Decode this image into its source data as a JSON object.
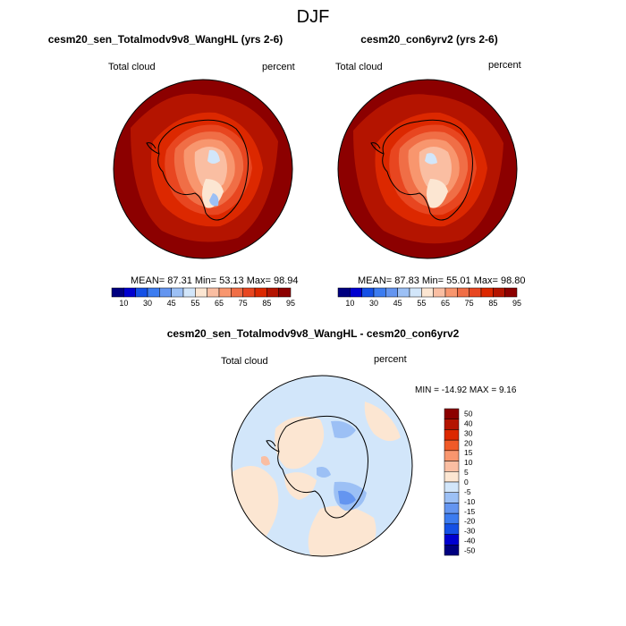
{
  "figure_title": "DJF",
  "chart_data": [
    {
      "type": "heatmap",
      "title": "cesm20_sen_Totalmodv9v8_WangHL (yrs 2-6)",
      "left_label": "Total cloud",
      "right_label": "percent",
      "stats": {
        "mean_label": "MEAN=",
        "mean": "87.31",
        "min_label": "Min=",
        "min": "53.13",
        "max_label": "Max=",
        "max": "98.94"
      },
      "colorbar": {
        "orientation": "horizontal",
        "colors": [
          "#000080",
          "#0000d0",
          "#1450e6",
          "#3c7cf0",
          "#6495f0",
          "#9cc0f5",
          "#d2e6fa",
          "#fce6d2",
          "#fabea2",
          "#f8966e",
          "#f06e46",
          "#e84620",
          "#dc2800",
          "#b41400",
          "#8c0000"
        ],
        "ticks": [
          "10",
          "30",
          "45",
          "55",
          "65",
          "75",
          "85",
          "95"
        ]
      }
    },
    {
      "type": "heatmap",
      "title": "cesm20_con6yrv2 (yrs 2-6)",
      "left_label": "Total cloud",
      "right_label": "percent",
      "stats": {
        "mean_label": "MEAN=",
        "mean": "87.83",
        "min_label": "Min=",
        "min": "55.01",
        "max_label": "Max=",
        "max": "98.80"
      },
      "colorbar": {
        "orientation": "horizontal",
        "colors": [
          "#000080",
          "#0000d0",
          "#1450e6",
          "#3c7cf0",
          "#6495f0",
          "#9cc0f5",
          "#d2e6fa",
          "#fce6d2",
          "#fabea2",
          "#f8966e",
          "#f06e46",
          "#e84620",
          "#dc2800",
          "#b41400",
          "#8c0000"
        ],
        "ticks": [
          "10",
          "30",
          "45",
          "55",
          "65",
          "75",
          "85",
          "95"
        ]
      }
    },
    {
      "type": "heatmap",
      "title": "cesm20_sen_Totalmodv9v8_WangHL - cesm20_con6yrv2",
      "left_label": "Total cloud",
      "right_label": "percent",
      "stats": {
        "min_label": "MIN =",
        "min": "-14.92",
        "max_label": "MAX =",
        "max": "9.16"
      },
      "colorbar": {
        "orientation": "vertical",
        "colors": [
          "#8c0000",
          "#b41400",
          "#dc2800",
          "#f05a28",
          "#f8966e",
          "#fabea2",
          "#fce6d2",
          "#d2e6fa",
          "#9cc0f5",
          "#6495f0",
          "#3c7cf0",
          "#1450e6",
          "#0000d0",
          "#000080"
        ],
        "ticks": [
          "50",
          "40",
          "30",
          "20",
          "15",
          "10",
          "5",
          "0",
          "-5",
          "-10",
          "-15",
          "-20",
          "-30",
          "-40",
          "-50"
        ]
      }
    }
  ]
}
